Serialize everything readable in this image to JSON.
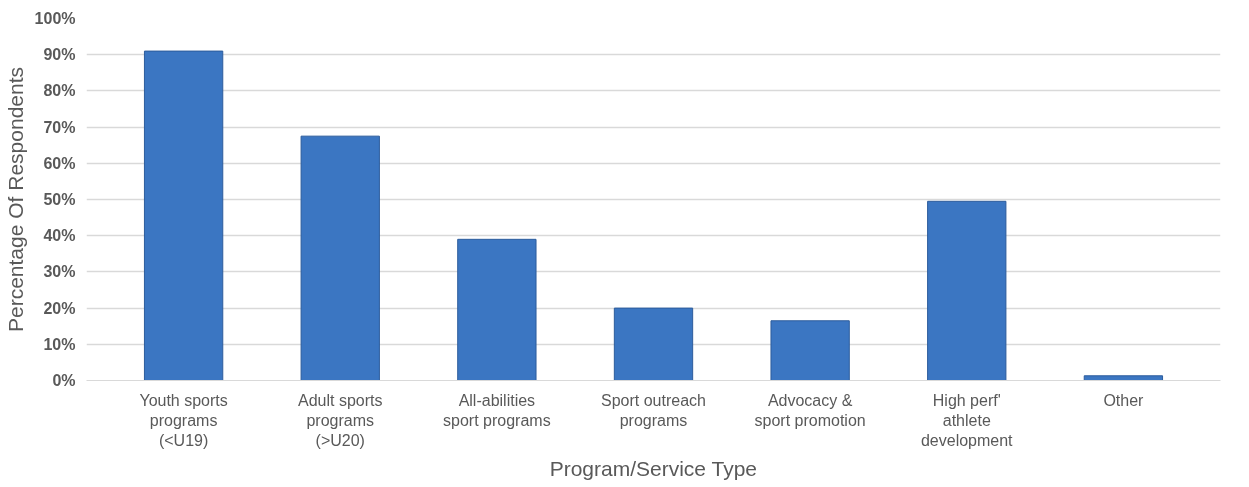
{
  "chart_data": {
    "type": "bar",
    "xlabel": "Program/Service Type",
    "ylabel": "Percentage Of Respondents",
    "categories": [
      "Youth sports\nprograms\n(<U19)",
      "Adult sports\nprograms\n(>U20)",
      "All-abilities\nsport programs",
      "Sport outreach\nprograms",
      "Advocacy &\nsport promotion",
      "High perf'\nathlete\ndevelopment",
      "Other"
    ],
    "values": [
      91,
      67.5,
      39,
      20,
      16.5,
      49.5,
      1.3
    ],
    "color": "#3b76c2",
    "ylim": [
      0,
      100
    ],
    "yticks": [
      {
        "value": 0,
        "label": "0%"
      },
      {
        "value": 10,
        "label": "10%"
      },
      {
        "value": 20,
        "label": "20%"
      },
      {
        "value": 30,
        "label": "30%"
      },
      {
        "value": 40,
        "label": "40%"
      },
      {
        "value": 50,
        "label": "50%"
      },
      {
        "value": 60,
        "label": "60%"
      },
      {
        "value": 70,
        "label": "70%"
      },
      {
        "value": 80,
        "label": "80%"
      },
      {
        "value": 90,
        "label": "90%"
      },
      {
        "value": 100,
        "label": "100%"
      }
    ],
    "grid": "y"
  }
}
